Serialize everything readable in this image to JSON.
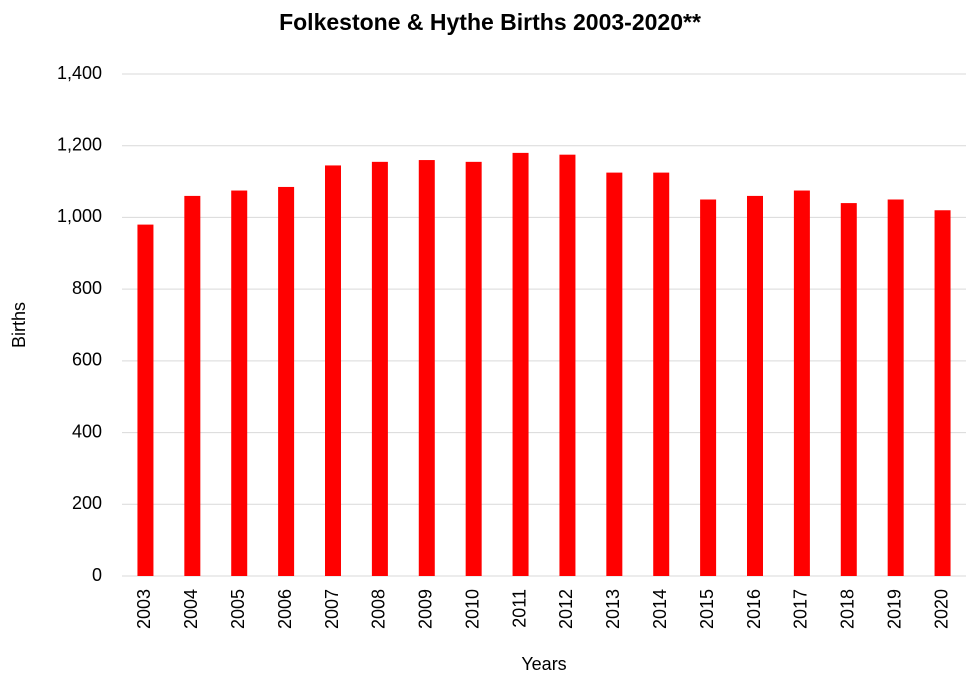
{
  "chart_data": {
    "type": "bar",
    "title": "Folkestone & Hythe Births 2003-2020**",
    "x_label": "Years",
    "y_label": "Births",
    "categories": [
      "2003",
      "2004",
      "2005",
      "2006",
      "2007",
      "2008",
      "2009",
      "2010",
      "2011",
      "2012",
      "2013",
      "2014",
      "2015",
      "2016",
      "2017",
      "2018",
      "2019",
      "2020"
    ],
    "values": [
      980,
      1060,
      1075,
      1085,
      1145,
      1155,
      1160,
      1155,
      1180,
      1175,
      1125,
      1125,
      1050,
      1060,
      1075,
      1040,
      1050,
      1020
    ],
    "color": "#ff0000",
    "ylim": [
      0,
      1400
    ],
    "yticks": [
      0,
      200,
      400,
      600,
      800,
      {
        "value": 1000,
        "label": "1,000"
      },
      {
        "value": 1200,
        "label": "1,200"
      },
      {
        "value": 1400,
        "label": "1,400"
      }
    ],
    "grid": true
  }
}
